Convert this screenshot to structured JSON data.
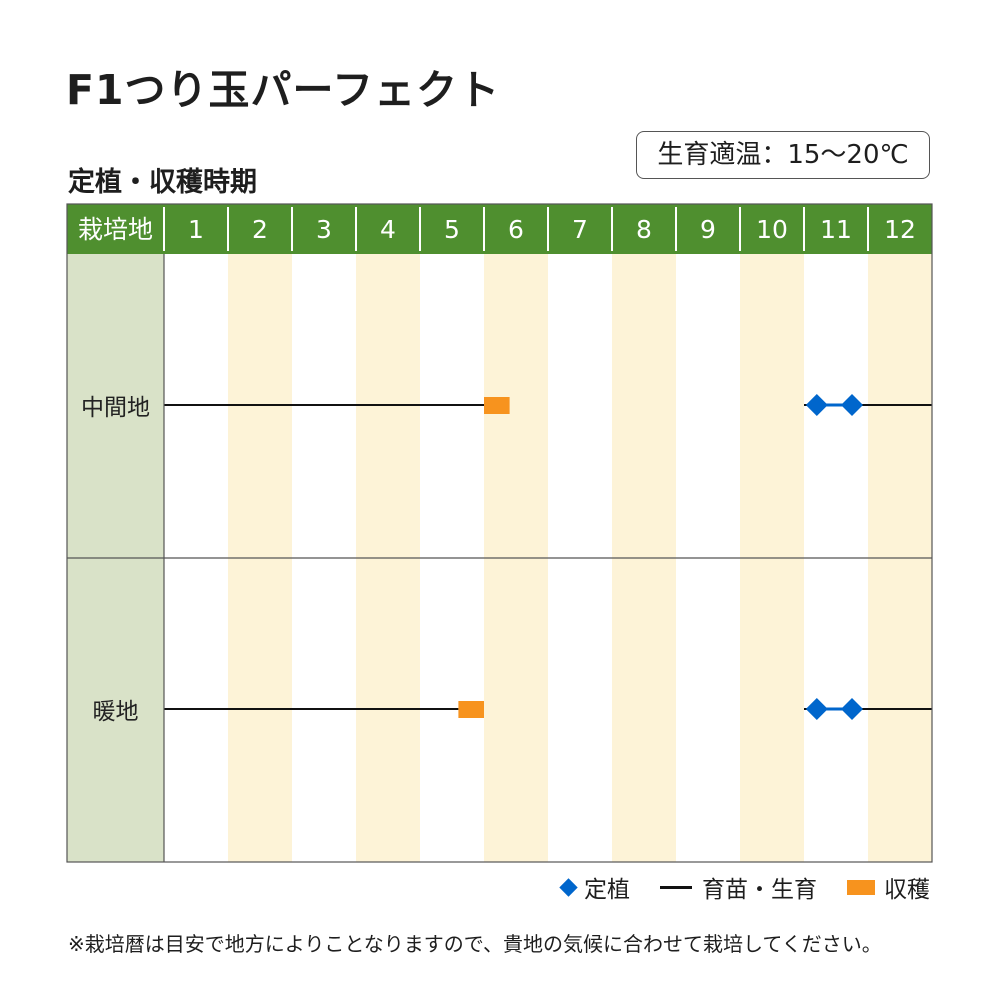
{
  "title": "F1つり玉パーフェクト",
  "temperature_label": "生育適温：15〜20℃",
  "chart_data": {
    "type": "table",
    "subtitle": "定植・収穫時期",
    "header_label": "栽培地",
    "months": [
      "1",
      "2",
      "3",
      "4",
      "5",
      "6",
      "7",
      "8",
      "9",
      "10",
      "11",
      "12"
    ],
    "regions": [
      {
        "name": "中間地",
        "growing": [
          [
            1,
            6.2
          ],
          [
            11,
            13
          ]
        ],
        "planting_diamonds": [
          11.2,
          11.75
        ],
        "harvest": [
          6,
          6.4
        ]
      },
      {
        "name": "暖地",
        "growing": [
          [
            1,
            5.6
          ],
          [
            11,
            13
          ]
        ],
        "planting_diamonds": [
          11.2,
          11.75
        ],
        "harvest": [
          5.6,
          6.0
        ]
      }
    ],
    "colors": {
      "header_green": "#4f8f2f",
      "region_column": "#d9e2c8",
      "alt_column": "#fdf3d7",
      "planting": "#0066cc",
      "growing": "#111111",
      "harvest": "#f7931e",
      "grid": "#555555"
    }
  },
  "legend": {
    "planting": "定植",
    "growing": "育苗・生育",
    "harvest": "収穫"
  },
  "note": "※栽培暦は目安で地方によりことなりますので、貴地の気候に合わせて栽培してください。"
}
